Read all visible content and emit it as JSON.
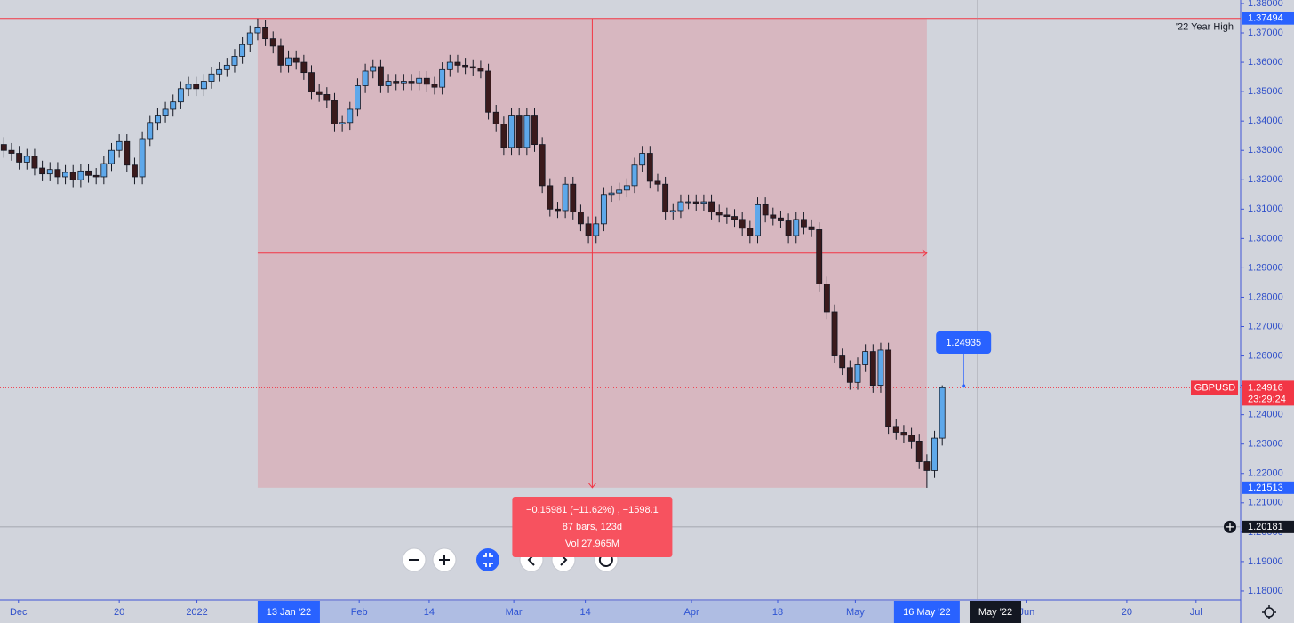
{
  "chart_data": {
    "type": "candlestick",
    "symbol": "GBPUSD",
    "countdown": "23:29:24",
    "up_color": "#5ea8ea",
    "down_color": "#3a1a1c",
    "open": [
      1.332,
      1.33,
      1.329,
      1.326,
      1.328,
      1.324,
      1.322,
      1.3235,
      1.321,
      1.3225,
      1.32,
      1.323,
      1.3215,
      1.321,
      1.3255,
      1.33,
      1.333,
      1.325,
      1.321,
      1.334,
      1.3395,
      1.342,
      1.344,
      1.3465,
      1.351,
      1.3525,
      1.351,
      1.3535,
      1.356,
      1.3575,
      1.359,
      1.362,
      1.366,
      1.37,
      1.372,
      1.368,
      1.3655,
      1.359,
      1.3615,
      1.36,
      1.3565,
      1.35,
      1.349,
      1.347,
      1.339,
      1.3395,
      1.344,
      1.352,
      1.357,
      1.3585,
      1.352,
      1.3535,
      1.353,
      1.3535,
      1.353,
      1.3545,
      1.3525,
      1.3515,
      1.3575,
      1.36,
      1.359,
      1.3585,
      1.358,
      1.357,
      1.343,
      1.339,
      1.331,
      1.342,
      1.331,
      1.342,
      1.332,
      1.318,
      1.31,
      1.3095,
      1.3185,
      1.309,
      1.305,
      1.301,
      1.305,
      1.315,
      1.3155,
      1.3165,
      1.318,
      1.325,
      1.329,
      1.3195,
      1.3185,
      1.309,
      1.3095,
      1.3125,
      1.3125,
      1.312,
      1.3125,
      1.309,
      1.308,
      1.3075,
      1.3065,
      1.3035,
      1.301,
      1.3115,
      1.308,
      1.307,
      1.306,
      1.301,
      1.3065,
      1.304,
      1.303,
      1.2845,
      1.275,
      1.26,
      1.256,
      1.251,
      1.257,
      1.2615,
      1.25,
      1.262,
      1.236,
      1.234,
      1.233,
      1.231,
      1.224,
      1.221,
      1.232
    ],
    "high": [
      1.3345,
      1.3325,
      1.3315,
      1.3305,
      1.3305,
      1.3265,
      1.326,
      1.326,
      1.325,
      1.325,
      1.3255,
      1.3255,
      1.324,
      1.328,
      1.3325,
      1.3355,
      1.3355,
      1.3275,
      1.3365,
      1.342,
      1.3445,
      1.3465,
      1.349,
      1.3535,
      1.355,
      1.355,
      1.356,
      1.3585,
      1.36,
      1.3615,
      1.3645,
      1.3685,
      1.3725,
      1.3749,
      1.3745,
      1.3705,
      1.368,
      1.364,
      1.364,
      1.3625,
      1.359,
      1.3525,
      1.3515,
      1.3495,
      1.342,
      1.3465,
      1.3545,
      1.3595,
      1.361,
      1.361,
      1.356,
      1.356,
      1.356,
      1.356,
      1.357,
      1.357,
      1.355,
      1.36,
      1.3625,
      1.3625,
      1.3615,
      1.361,
      1.3605,
      1.3595,
      1.3455,
      1.3415,
      1.3445,
      1.3445,
      1.3445,
      1.3445,
      1.3345,
      1.3205,
      1.3125,
      1.321,
      1.321,
      1.3115,
      1.3075,
      1.3075,
      1.3175,
      1.318,
      1.319,
      1.3205,
      1.3275,
      1.3315,
      1.3315,
      1.322,
      1.321,
      1.312,
      1.315,
      1.315,
      1.315,
      1.315,
      1.315,
      1.3115,
      1.3105,
      1.31,
      1.309,
      1.306,
      1.314,
      1.314,
      1.3105,
      1.3095,
      1.3085,
      1.309,
      1.309,
      1.3065,
      1.3055,
      1.287,
      1.2775,
      1.2625,
      1.2585,
      1.2595,
      1.264,
      1.264,
      1.2645,
      1.2645,
      1.2385,
      1.2365,
      1.2355,
      1.2335,
      1.2265,
      1.2345,
      1.25
    ],
    "low": [
      1.3275,
      1.3265,
      1.3235,
      1.3235,
      1.3215,
      1.3195,
      1.3195,
      1.3185,
      1.3185,
      1.3175,
      1.3175,
      1.319,
      1.3185,
      1.3185,
      1.323,
      1.3275,
      1.3225,
      1.3185,
      1.3185,
      1.3315,
      1.337,
      1.3395,
      1.3415,
      1.344,
      1.3485,
      1.3485,
      1.3485,
      1.351,
      1.3535,
      1.355,
      1.3565,
      1.3595,
      1.3635,
      1.3675,
      1.3655,
      1.363,
      1.3565,
      1.3565,
      1.3575,
      1.354,
      1.3475,
      1.3465,
      1.3445,
      1.3365,
      1.3365,
      1.337,
      1.3415,
      1.3495,
      1.3545,
      1.3495,
      1.3495,
      1.3505,
      1.3505,
      1.3505,
      1.3505,
      1.35,
      1.349,
      1.349,
      1.355,
      1.3565,
      1.356,
      1.3555,
      1.3545,
      1.3405,
      1.3365,
      1.3285,
      1.3285,
      1.3285,
      1.3285,
      1.3295,
      1.3155,
      1.3075,
      1.307,
      1.307,
      1.3065,
      1.3025,
      1.2985,
      1.2985,
      1.3025,
      1.3125,
      1.313,
      1.314,
      1.3155,
      1.3225,
      1.317,
      1.316,
      1.3065,
      1.3065,
      1.307,
      1.31,
      1.3095,
      1.3095,
      1.3065,
      1.3055,
      1.305,
      1.304,
      1.301,
      1.2985,
      1.2985,
      1.3055,
      1.3045,
      1.3035,
      1.2985,
      1.2985,
      1.3015,
      1.3005,
      1.282,
      1.2725,
      1.2575,
      1.2535,
      1.2485,
      1.2485,
      1.2545,
      1.2475,
      1.2475,
      1.2335,
      1.2315,
      1.2305,
      1.2285,
      1.2215,
      1.2151,
      1.2185,
      1.2295
    ],
    "close": [
      1.33,
      1.329,
      1.326,
      1.328,
      1.324,
      1.322,
      1.3235,
      1.321,
      1.3225,
      1.32,
      1.323,
      1.3215,
      1.321,
      1.3255,
      1.33,
      1.333,
      1.325,
      1.321,
      1.334,
      1.3395,
      1.342,
      1.344,
      1.3465,
      1.351,
      1.3525,
      1.351,
      1.3535,
      1.356,
      1.3575,
      1.359,
      1.362,
      1.366,
      1.37,
      1.372,
      1.368,
      1.3655,
      1.359,
      1.3615,
      1.36,
      1.3565,
      1.35,
      1.349,
      1.347,
      1.339,
      1.3395,
      1.344,
      1.352,
      1.357,
      1.3585,
      1.352,
      1.3535,
      1.353,
      1.3535,
      1.353,
      1.3545,
      1.3525,
      1.3515,
      1.3575,
      1.36,
      1.359,
      1.3585,
      1.358,
      1.357,
      1.343,
      1.339,
      1.331,
      1.342,
      1.331,
      1.342,
      1.332,
      1.318,
      1.31,
      1.3095,
      1.3185,
      1.309,
      1.305,
      1.301,
      1.305,
      1.315,
      1.3155,
      1.3165,
      1.318,
      1.325,
      1.329,
      1.3195,
      1.3185,
      1.309,
      1.3095,
      1.3125,
      1.3125,
      1.312,
      1.3125,
      1.309,
      1.308,
      1.3075,
      1.3065,
      1.3035,
      1.301,
      1.3115,
      1.308,
      1.307,
      1.306,
      1.301,
      1.3065,
      1.304,
      1.303,
      1.2845,
      1.275,
      1.26,
      1.256,
      1.251,
      1.257,
      1.2615,
      1.25,
      1.262,
      1.236,
      1.234,
      1.233,
      1.231,
      1.224,
      1.221,
      1.232,
      1.2492
    ],
    "xlim": [
      -0.5,
      160.8
    ],
    "xticks": [
      {
        "value": 1.9,
        "label": "Dec"
      },
      {
        "value": 15,
        "label": "20"
      },
      {
        "value": 25.1,
        "label": "2022"
      },
      {
        "value": 46.2,
        "label": "Feb"
      },
      {
        "value": 55.3,
        "label": "14"
      },
      {
        "value": 66.3,
        "label": "Mar"
      },
      {
        "value": 75.6,
        "label": "14"
      },
      {
        "value": 89.4,
        "label": "Apr"
      },
      {
        "value": 100.6,
        "label": "18"
      },
      {
        "value": 110.7,
        "label": "May"
      },
      {
        "value": 133,
        "label": "Jun"
      },
      {
        "value": 146,
        "label": "20"
      },
      {
        "value": 155,
        "label": "Jul"
      }
    ],
    "ylim": [
      1.17696,
      1.3812
    ],
    "yticks": [
      {
        "value": 1.18,
        "label": "1.18000"
      },
      {
        "value": 1.19,
        "label": "1.19000"
      },
      {
        "value": 1.2,
        "label": "1.20000"
      },
      {
        "value": 1.21,
        "label": "1.21000"
      },
      {
        "value": 1.22,
        "label": "1.22000"
      },
      {
        "value": 1.23,
        "label": "1.23000"
      },
      {
        "value": 1.24,
        "label": "1.24000"
      },
      {
        "value": 1.25,
        "label": "1.25000"
      },
      {
        "value": 1.26,
        "label": "1.26000"
      },
      {
        "value": 1.27,
        "label": "1.27000"
      },
      {
        "value": 1.28,
        "label": "1.28000"
      },
      {
        "value": 1.29,
        "label": "1.29000"
      },
      {
        "value": 1.3,
        "label": "1.30000"
      },
      {
        "value": 1.31,
        "label": "1.31000"
      },
      {
        "value": 1.32,
        "label": "1.32000"
      },
      {
        "value": 1.33,
        "label": "1.33000"
      },
      {
        "value": 1.34,
        "label": "1.34000"
      },
      {
        "value": 1.35,
        "label": "1.35000"
      },
      {
        "value": 1.36,
        "label": "1.36000"
      },
      {
        "value": 1.37,
        "label": "1.37000"
      },
      {
        "value": 1.38,
        "label": "1.38000"
      }
    ],
    "year_high": {
      "price": 1.37494,
      "label": "'22 Year High"
    },
    "last_price": 1.24916,
    "tooltip_price": 1.24935,
    "measure": {
      "start": {
        "value": 33,
        "label": "13 Jan '22"
      },
      "end": {
        "value": 120,
        "label": "16 May '22"
      },
      "high": 1.37494,
      "low": 1.21513,
      "lines": [
        "−0.15981 (−11.62%) , −1598.1",
        "87 bars, 123d",
        "Vol 27.965M"
      ]
    },
    "crosshair": {
      "x": {
        "value": 126.6,
        "label": "May '22"
      },
      "price": 1.20181
    }
  }
}
